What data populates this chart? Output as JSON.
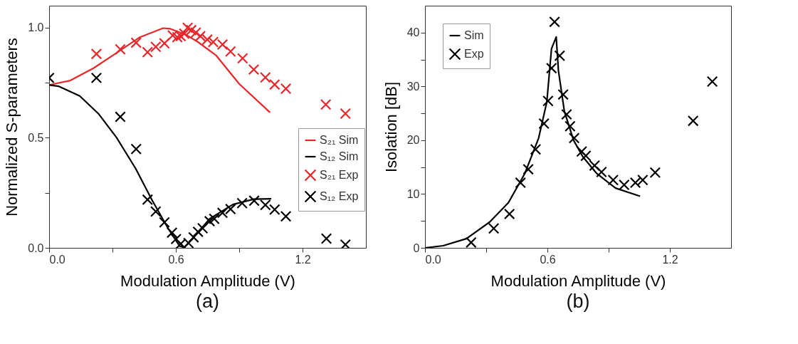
{
  "chart_data": [
    {
      "type": "line",
      "xlabel": "Modulation Amplitude (V)",
      "ylabel": "Normalized S-parameters",
      "annotations": [
        "(a)"
      ],
      "xlim": [
        0,
        1.5
      ],
      "ylim": [
        0,
        1.1
      ],
      "xticks": [
        {
          "value": 0,
          "label": "0.0"
        },
        {
          "value": 0.3,
          "label": null
        },
        {
          "value": 0.6,
          "label": "0.6"
        },
        {
          "value": 0.9,
          "label": null
        },
        {
          "value": 1.2,
          "label": "1.2"
        }
      ],
      "yticks": [
        {
          "value": 0,
          "label": "0.0"
        },
        {
          "value": 0.25,
          "label": null
        },
        {
          "value": 0.5,
          "label": "0.5"
        },
        {
          "value": 0.75,
          "label": null
        },
        {
          "value": 1,
          "label": "1.0"
        }
      ],
      "grid": false,
      "legend": "right",
      "series": [
        {
          "name": "S₂₁ Sim",
          "type": "line",
          "color": "#e8262a",
          "line_style": "solid",
          "x": [
            0,
            0.1,
            0.21,
            0.32,
            0.43,
            0.54,
            0.574,
            0.65,
            0.705,
            0.79,
            0.9,
            1.046
          ],
          "values": [
            0.74,
            0.76,
            0.816,
            0.886,
            0.957,
            0.998,
            0.995,
            0.967,
            0.935,
            0.875,
            0.745,
            0.615
          ]
        },
        {
          "name": "S₁₂ Sim",
          "type": "line",
          "color": "#000000",
          "line_style": "solid",
          "x": [
            0,
            0.046,
            0.145,
            0.233,
            0.32,
            0.41,
            0.486,
            0.563,
            0.618,
            0.64,
            0.683,
            0.76,
            0.87,
            0.97,
            1.052
          ],
          "values": [
            0.74,
            0.734,
            0.69,
            0.61,
            0.5,
            0.36,
            0.219,
            0.089,
            0.008,
            0.002,
            0.046,
            0.132,
            0.197,
            0.221,
            0.223
          ]
        },
        {
          "name": "S₂₁ Exp",
          "type": "scatter",
          "marker": "cross",
          "color": "#e8262a",
          "x": [
            0.224,
            0.337,
            0.412,
            0.466,
            0.505,
            0.546,
            0.585,
            0.607,
            0.623,
            0.64,
            0.656,
            0.673,
            0.695,
            0.716,
            0.749,
            0.777,
            0.821,
            0.859,
            0.916,
            0.969,
            1.024,
            1.068,
            1.121,
            1.31,
            1.403
          ],
          "values": [
            0.881,
            0.902,
            0.932,
            0.889,
            0.913,
            0.929,
            0.965,
            0.957,
            0.962,
            0.973,
            1.0,
            0.989,
            0.978,
            0.962,
            0.946,
            0.935,
            0.924,
            0.892,
            0.861,
            0.81,
            0.774,
            0.742,
            0.723,
            0.651,
            0.61
          ]
        },
        {
          "name": "S₁₂ Exp",
          "type": "scatter",
          "marker": "cross",
          "color": "#000000",
          "x": [
            0,
            0.224,
            0.337,
            0.412,
            0.466,
            0.505,
            0.546,
            0.582,
            0.601,
            0.623,
            0.64,
            0.66,
            0.684,
            0.705,
            0.727,
            0.76,
            0.782,
            0.821,
            0.859,
            0.914,
            0.971,
            1.024,
            1.068,
            1.121,
            1.313,
            1.403
          ],
          "values": [
            0.772,
            0.772,
            0.595,
            0.449,
            0.219,
            0.165,
            0.116,
            0.069,
            0.04,
            0.018,
            0.002,
            0.022,
            0.048,
            0.073,
            0.089,
            0.121,
            0.132,
            0.159,
            0.176,
            0.203,
            0.214,
            0.195,
            0.174,
            0.143,
            0.042,
            0.015
          ]
        }
      ]
    },
    {
      "type": "line",
      "xlabel": "Modulation Amplitude (V)",
      "ylabel": "Isolation [dB]",
      "annotations": [
        "(b)"
      ],
      "xlim": [
        0,
        1.5
      ],
      "ylim": [
        0,
        45
      ],
      "xticks": [
        {
          "value": 0,
          "label": "0.0"
        },
        {
          "value": 0.3,
          "label": null
        },
        {
          "value": 0.6,
          "label": "0.6"
        },
        {
          "value": 0.9,
          "label": null
        },
        {
          "value": 1.2,
          "label": "1.2"
        }
      ],
      "yticks": [
        0,
        {
          "value": 5,
          "label": null
        },
        10,
        {
          "value": 15,
          "label": null
        },
        20,
        {
          "value": 25,
          "label": null
        },
        30,
        {
          "value": 35,
          "label": null
        },
        40
      ],
      "grid": false,
      "legend": "top left",
      "series": [
        {
          "name": "Sim",
          "type": "line",
          "color": "#000000",
          "line_style": "solid",
          "x": [
            0,
            0.089,
            0.203,
            0.317,
            0.409,
            0.489,
            0.557,
            0.597,
            0.62,
            0.643,
            0.654,
            0.683,
            0.728,
            0.774,
            0.842,
            0.934,
            1.054
          ],
          "values": [
            0,
            0.4,
            1.7,
            4.8,
            8.4,
            13.8,
            20.4,
            27.1,
            37.0,
            39.2,
            32.9,
            25.4,
            20.0,
            16.9,
            13.8,
            11.1,
            9.6
          ]
        },
        {
          "name": "Exp",
          "type": "scatter",
          "marker": "cross",
          "color": "#000000",
          "x": [
            0.226,
            0.337,
            0.414,
            0.468,
            0.506,
            0.542,
            0.583,
            0.603,
            0.62,
            0.635,
            0.66,
            0.677,
            0.694,
            0.711,
            0.731,
            0.768,
            0.788,
            0.831,
            0.865,
            0.922,
            0.976,
            1.031,
            1.067,
            1.128,
            1.314,
            1.408
          ],
          "values": [
            1.0,
            3.6,
            6.3,
            12.1,
            14.6,
            18.3,
            23.1,
            27.3,
            33.4,
            42.0,
            35.7,
            28.5,
            24.8,
            22.6,
            20.4,
            17.9,
            17.1,
            15.3,
            14.1,
            12.6,
            11.7,
            12.1,
            12.6,
            14.0,
            23.6,
            30.9
          ]
        }
      ]
    }
  ]
}
